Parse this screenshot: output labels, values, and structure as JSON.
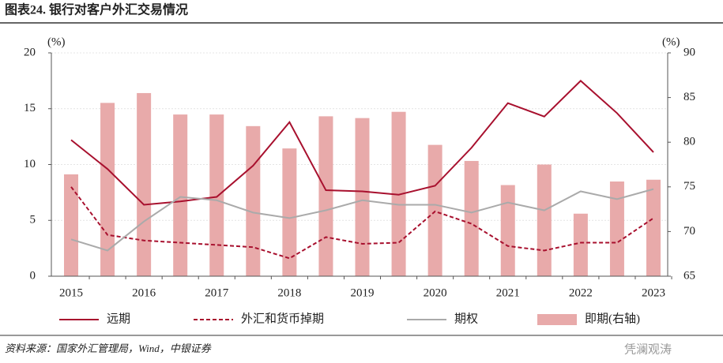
{
  "chart_data": {
    "type": "combo",
    "title": "图表24. 银行对客户外汇交易情况",
    "y_unit": "(%)",
    "y2_unit": "(%)",
    "categories": [
      "2015",
      null,
      "2016",
      null,
      "2017",
      null,
      "2018",
      null,
      "2019",
      null,
      "2020",
      null,
      "2021",
      null,
      "2022",
      null,
      "2023"
    ],
    "ylim": [
      0,
      20
    ],
    "yticks": [
      0,
      5,
      10,
      15,
      20
    ],
    "y2lim": [
      65,
      90
    ],
    "y2ticks": [
      65,
      70,
      75,
      80,
      85,
      90
    ],
    "grid": true,
    "series": [
      {
        "name": "远期",
        "type": "line",
        "color": "#a8102e",
        "dash": false,
        "values": [
          12.2,
          9.6,
          6.4,
          6.7,
          7.1,
          9.9,
          13.8,
          7.7,
          7.6,
          7.3,
          8.1,
          11.5,
          15.5,
          14.3,
          17.5,
          14.6,
          11.1
        ]
      },
      {
        "name": "外汇和货币掉期",
        "type": "line",
        "color": "#a8102e",
        "dash": true,
        "values": [
          8.0,
          3.7,
          3.2,
          3.0,
          2.8,
          2.6,
          1.6,
          3.5,
          2.9,
          3.0,
          5.8,
          4.7,
          2.7,
          2.3,
          3.0,
          3.0,
          5.2
        ]
      },
      {
        "name": "期权",
        "type": "line",
        "color": "#aaaaaa",
        "dash": false,
        "values": [
          3.3,
          2.3,
          4.9,
          7.1,
          6.8,
          5.7,
          5.2,
          5.9,
          6.8,
          6.4,
          6.4,
          5.7,
          6.6,
          5.9,
          7.6,
          6.9,
          7.8
        ]
      },
      {
        "name": "即期(右轴)",
        "type": "bar",
        "axis": "y2",
        "color": "#e8aaaa",
        "values": [
          76.4,
          84.4,
          85.5,
          83.1,
          83.1,
          81.8,
          79.3,
          82.9,
          82.7,
          83.4,
          79.7,
          77.9,
          75.2,
          77.5,
          72.0,
          75.6,
          75.8
        ]
      }
    ],
    "legend": "bottom",
    "source": "资料来源：国家外汇管理局，Wind，中银证券",
    "watermark": "凭澜观涛"
  }
}
